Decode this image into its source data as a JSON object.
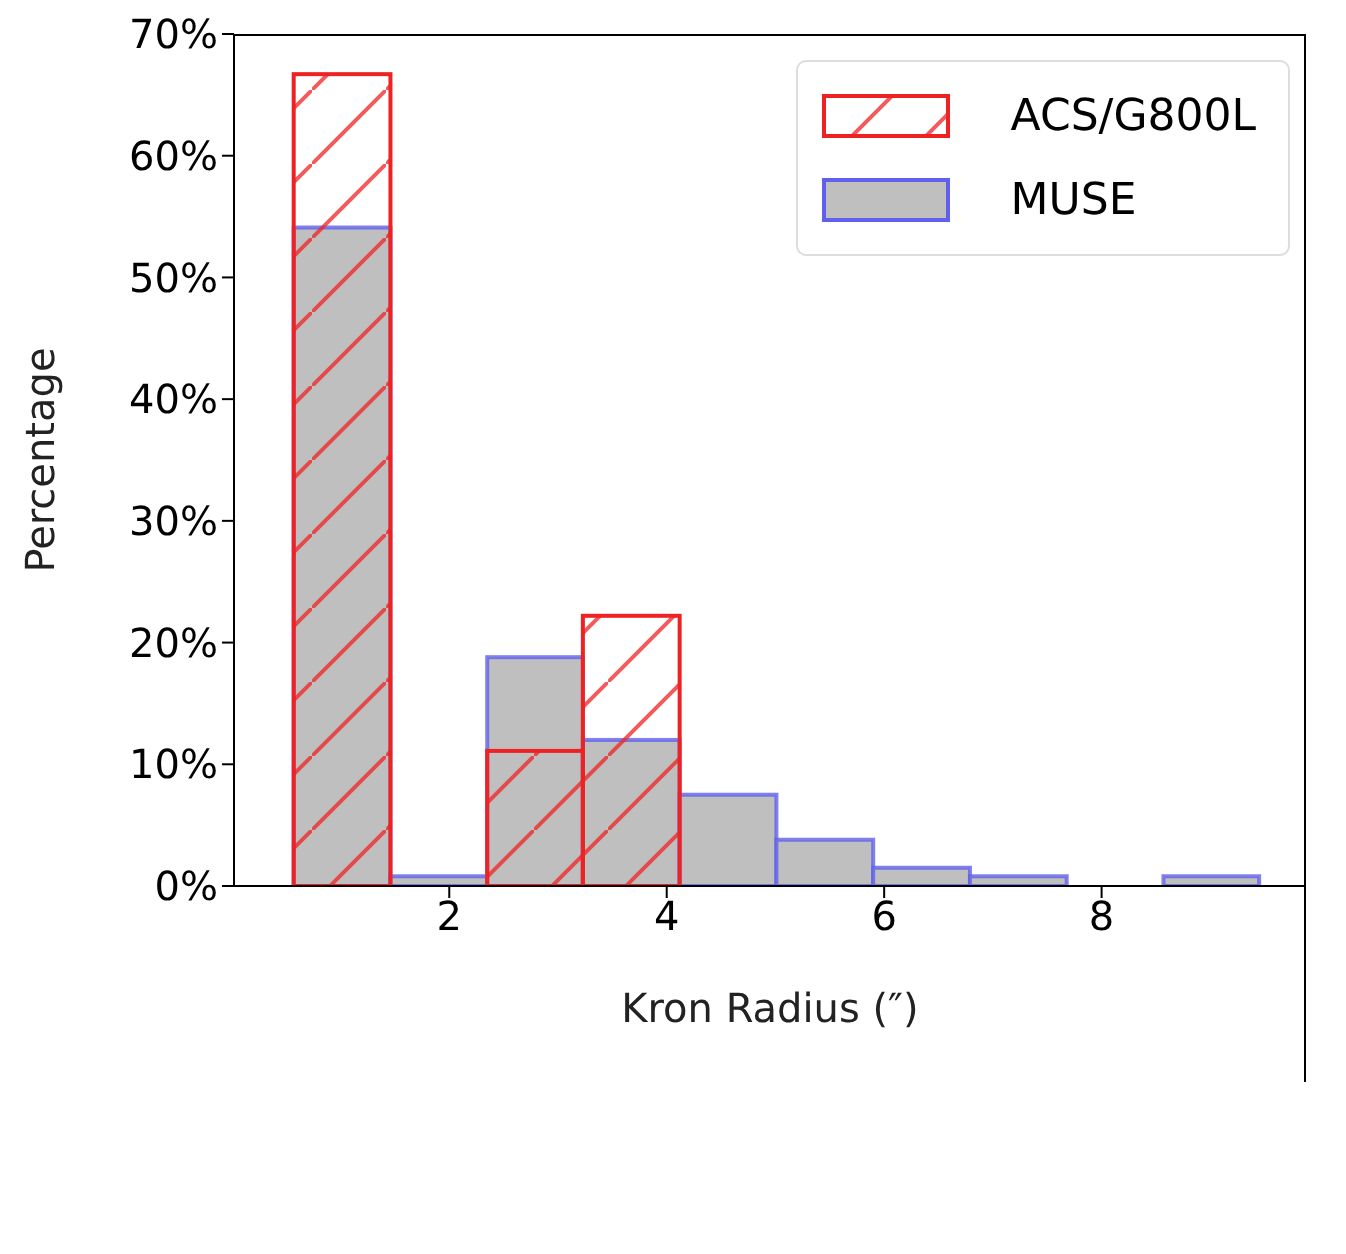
{
  "chart_data": {
    "type": "histogram",
    "xlabel": "Kron Radius (″)",
    "ylabel": "Percentage",
    "bins": [
      0.57,
      1.46,
      2.35,
      3.23,
      4.12,
      5.01,
      5.9,
      6.79,
      7.68,
      8.57,
      9.45
    ],
    "series": [
      {
        "name": "MUSE",
        "color": "#bfbfbf",
        "values": [
          54.1,
          0.8,
          18.8,
          12.0,
          7.5,
          3.8,
          1.5,
          0.8,
          0,
          0.8
        ]
      },
      {
        "name": "ACS/G800L",
        "color": "#ee2222",
        "values": [
          66.7,
          0,
          11.1,
          22.2,
          0,
          0,
          0,
          0,
          0,
          0
        ]
      }
    ],
    "xlim": [
      0.02,
      9.88
    ],
    "xticks": [
      2,
      4,
      6,
      8
    ],
    "ylim": [
      0,
      70
    ],
    "yticks": [
      {
        "value": 0,
        "label": "0%"
      },
      {
        "value": 10,
        "label": "10%"
      },
      {
        "value": 20,
        "label": "20%"
      },
      {
        "value": 30,
        "label": "30%"
      },
      {
        "value": 40,
        "label": "40%"
      },
      {
        "value": 50,
        "label": "50%"
      },
      {
        "value": 60,
        "label": "60%"
      },
      {
        "value": 70,
        "label": "70%"
      }
    ],
    "legend": "top right"
  }
}
